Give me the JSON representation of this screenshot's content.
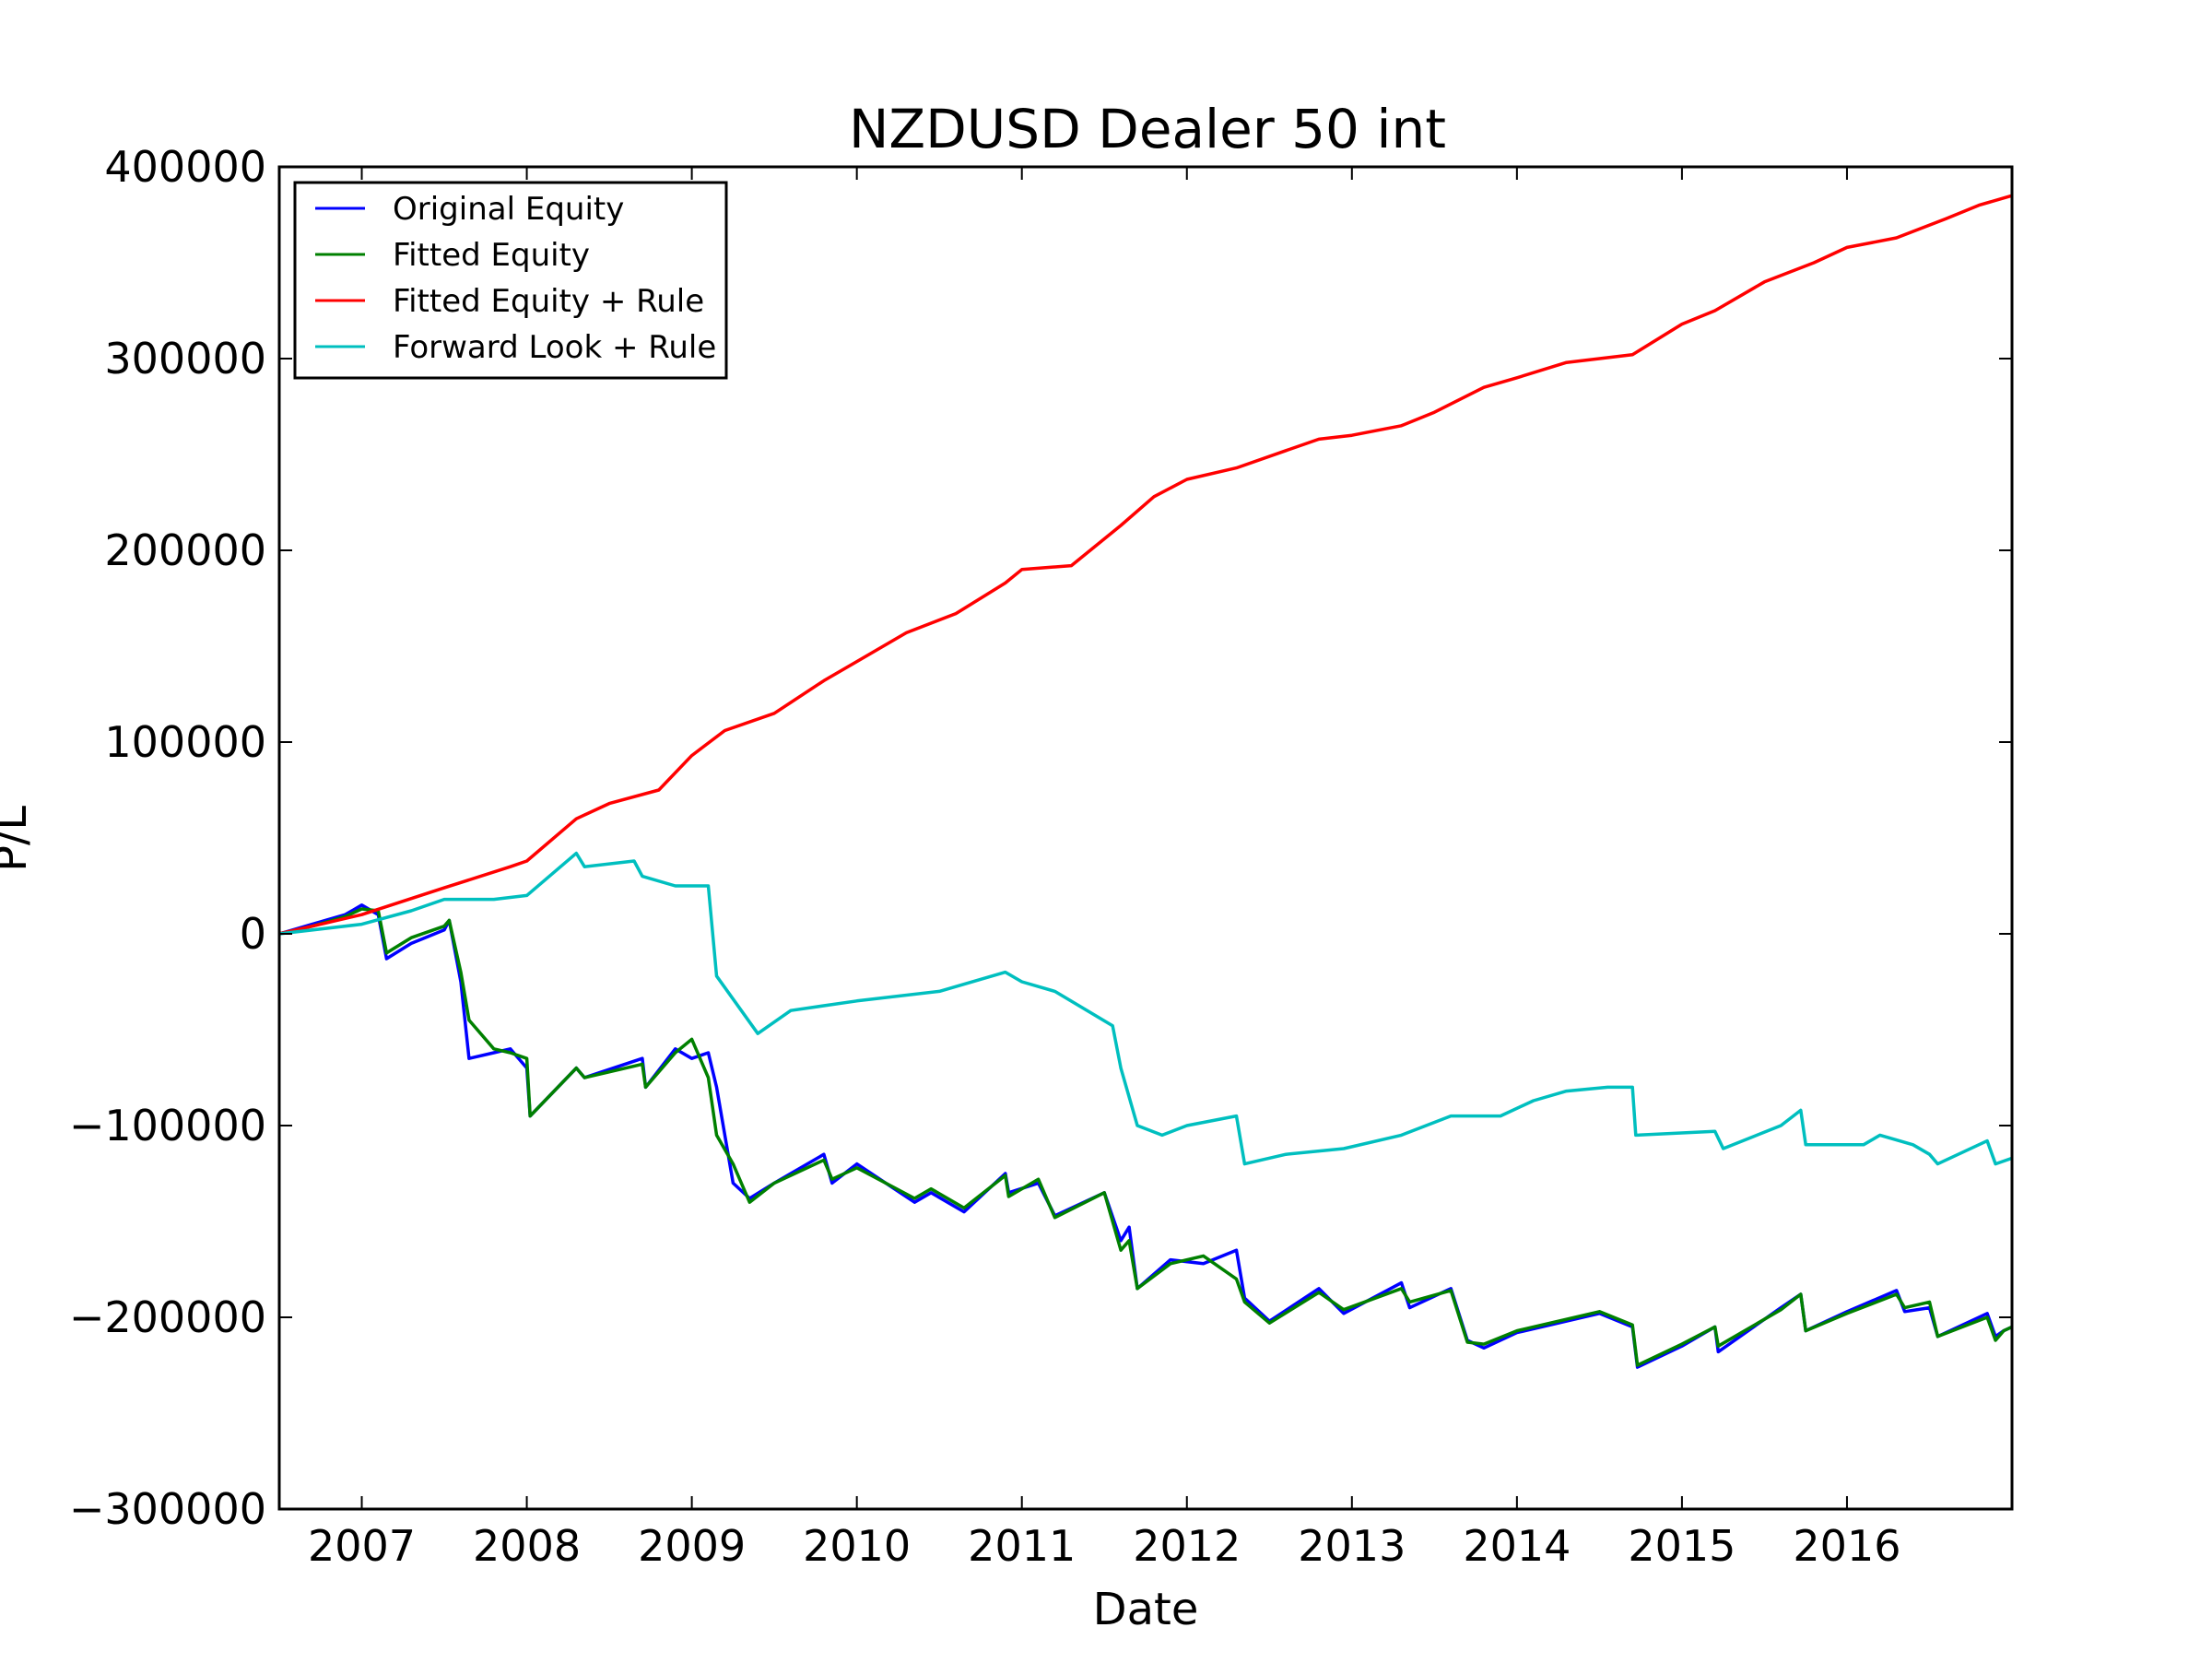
{
  "chart_data": {
    "type": "line",
    "title": "NZDUSD Dealer 50 int",
    "xlabel": "Date",
    "ylabel": "P/L",
    "xlim": [
      2006.5,
      2017.0
    ],
    "ylim": [
      -300000,
      400000
    ],
    "grid": false,
    "legend_position": "top-left",
    "x_ticks": [
      2007,
      2008,
      2009,
      2010,
      2011,
      2012,
      2013,
      2014,
      2015,
      2016
    ],
    "x_tick_labels": [
      "2007",
      "2008",
      "2009",
      "2010",
      "2011",
      "2012",
      "2013",
      "2014",
      "2015",
      "2016"
    ],
    "y_ticks": [
      -300000,
      -200000,
      -100000,
      0,
      100000,
      200000,
      300000,
      400000
    ],
    "y_tick_labels": [
      "−300000",
      "−200000",
      "−100000",
      "0",
      "100000",
      "200000",
      "300000",
      "400000"
    ],
    "series": [
      {
        "name": "Original Equity",
        "color": "#0000ff",
        "x": [
          2006.5,
          2006.7,
          2006.9,
          2007.0,
          2007.1,
          2007.15,
          2007.3,
          2007.5,
          2007.53,
          2007.6,
          2007.65,
          2007.8,
          2007.9,
          2008.0,
          2008.02,
          2008.3,
          2008.35,
          2008.7,
          2008.72,
          2008.9,
          2009.0,
          2009.1,
          2009.15,
          2009.25,
          2009.35,
          2009.5,
          2009.8,
          2009.85,
          2010.0,
          2010.35,
          2010.45,
          2010.65,
          2010.9,
          2010.92,
          2011.1,
          2011.2,
          2011.5,
          2011.6,
          2011.65,
          2011.7,
          2011.9,
          2012.1,
          2012.3,
          2012.35,
          2012.5,
          2012.8,
          2012.95,
          2013.3,
          2013.35,
          2013.6,
          2013.7,
          2013.8,
          2014.0,
          2014.5,
          2014.7,
          2014.73,
          2015.0,
          2015.2,
          2015.22,
          2015.6,
          2015.72,
          2015.75,
          2016.0,
          2016.3,
          2016.35,
          2016.5,
          2016.55,
          2016.85,
          2016.9,
          2016.95,
          2017.0
        ],
        "y": [
          0,
          5000,
          10000,
          15000,
          10000,
          -13000,
          -5000,
          2000,
          7000,
          -25000,
          -65000,
          -62000,
          -60000,
          -70000,
          -95000,
          -70000,
          -75000,
          -65000,
          -80000,
          -60000,
          -65000,
          -62000,
          -80000,
          -130000,
          -138000,
          -130000,
          -115000,
          -130000,
          -120000,
          -140000,
          -135000,
          -145000,
          -125000,
          -135000,
          -130000,
          -147000,
          -135000,
          -160000,
          -153000,
          -185000,
          -170000,
          -172000,
          -165000,
          -190000,
          -202000,
          -185000,
          -198000,
          -182000,
          -195000,
          -185000,
          -212000,
          -216000,
          -208000,
          -198000,
          -205000,
          -226000,
          -215000,
          -205000,
          -218000,
          -195000,
          -188000,
          -207000,
          -197000,
          -186000,
          -197000,
          -195000,
          -210000,
          -198000,
          -210000,
          -207000,
          -205000
        ]
      },
      {
        "name": "Fitted Equity",
        "color": "#008000",
        "x": [
          2006.5,
          2006.7,
          2006.9,
          2007.0,
          2007.1,
          2007.15,
          2007.3,
          2007.5,
          2007.53,
          2007.6,
          2007.65,
          2007.8,
          2007.9,
          2008.0,
          2008.02,
          2008.3,
          2008.35,
          2008.7,
          2008.72,
          2008.9,
          2009.0,
          2009.1,
          2009.15,
          2009.25,
          2009.35,
          2009.5,
          2009.8,
          2009.85,
          2010.0,
          2010.35,
          2010.45,
          2010.65,
          2010.9,
          2010.92,
          2011.1,
          2011.2,
          2011.5,
          2011.6,
          2011.65,
          2011.7,
          2011.9,
          2012.1,
          2012.3,
          2012.35,
          2012.5,
          2012.8,
          2012.95,
          2013.3,
          2013.35,
          2013.6,
          2013.7,
          2013.8,
          2014.0,
          2014.5,
          2014.7,
          2014.73,
          2015.0,
          2015.2,
          2015.22,
          2015.6,
          2015.72,
          2015.75,
          2016.0,
          2016.3,
          2016.35,
          2016.5,
          2016.55,
          2016.85,
          2016.9,
          2016.95,
          2017.0
        ],
        "y": [
          0,
          4000,
          9000,
          13000,
          12000,
          -10000,
          -2000,
          4000,
          7000,
          -20000,
          -45000,
          -60000,
          -62000,
          -65000,
          -95000,
          -70000,
          -75000,
          -68000,
          -80000,
          -62000,
          -55000,
          -75000,
          -105000,
          -120000,
          -140000,
          -130000,
          -118000,
          -128000,
          -122000,
          -138000,
          -133000,
          -143000,
          -126000,
          -137000,
          -128000,
          -148000,
          -135000,
          -165000,
          -160000,
          -185000,
          -172000,
          -168000,
          -180000,
          -192000,
          -203000,
          -187000,
          -196000,
          -185000,
          -192000,
          -186000,
          -213000,
          -214000,
          -207000,
          -197000,
          -204000,
          -225000,
          -214000,
          -205000,
          -215000,
          -196000,
          -188000,
          -207000,
          -198000,
          -188000,
          -195000,
          -192000,
          -210000,
          -200000,
          -212000,
          -207000,
          -205000
        ]
      },
      {
        "name": "Fitted Equity + Rule",
        "color": "#ff0000",
        "x": [
          2006.5,
          2007.0,
          2007.5,
          2007.9,
          2008.0,
          2008.3,
          2008.5,
          2008.8,
          2009.0,
          2009.2,
          2009.5,
          2009.8,
          2010.0,
          2010.3,
          2010.6,
          2010.9,
          2011.0,
          2011.3,
          2011.6,
          2011.8,
          2012.0,
          2012.3,
          2012.6,
          2012.8,
          2013.0,
          2013.3,
          2013.5,
          2013.8,
          2014.0,
          2014.3,
          2014.5,
          2014.7,
          2015.0,
          2015.2,
          2015.5,
          2015.8,
          2016.0,
          2016.3,
          2016.6,
          2016.8,
          2017.0
        ],
        "y": [
          0,
          10000,
          24000,
          35000,
          38000,
          60000,
          68000,
          75000,
          93000,
          106000,
          115000,
          132000,
          142000,
          157000,
          167000,
          183000,
          190000,
          192000,
          213000,
          228000,
          237000,
          243000,
          252000,
          258000,
          260000,
          265000,
          272000,
          285000,
          290000,
          298000,
          300000,
          302000,
          318000,
          325000,
          340000,
          350000,
          358000,
          363000,
          373000,
          380000,
          385000
        ]
      },
      {
        "name": "Forward Look + Rule",
        "color": "#00bfbf",
        "x": [
          2006.5,
          2007.0,
          2007.3,
          2007.5,
          2007.8,
          2008.0,
          2008.3,
          2008.35,
          2008.65,
          2008.7,
          2008.9,
          2009.1,
          2009.15,
          2009.3,
          2009.4,
          2009.6,
          2010.0,
          2010.5,
          2010.9,
          2011.0,
          2011.2,
          2011.55,
          2011.6,
          2011.7,
          2011.85,
          2012.0,
          2012.3,
          2012.35,
          2012.6,
          2012.95,
          2013.3,
          2013.6,
          2013.9,
          2014.1,
          2014.3,
          2014.55,
          2014.7,
          2014.72,
          2015.2,
          2015.25,
          2015.6,
          2015.72,
          2015.75,
          2016.1,
          2016.2,
          2016.4,
          2016.5,
          2016.55,
          2016.85,
          2016.9,
          2017.0
        ],
        "y": [
          0,
          5000,
          12000,
          18000,
          18000,
          20000,
          42000,
          35000,
          38000,
          30000,
          25000,
          25000,
          -22000,
          -40000,
          -52000,
          -40000,
          -35000,
          -30000,
          -20000,
          -25000,
          -30000,
          -48000,
          -70000,
          -100000,
          -105000,
          -100000,
          -95000,
          -120000,
          -115000,
          -112000,
          -105000,
          -95000,
          -95000,
          -87000,
          -82000,
          -80000,
          -80000,
          -105000,
          -103000,
          -112000,
          -100000,
          -92000,
          -110000,
          -110000,
          -105000,
          -110000,
          -115000,
          -120000,
          -108000,
          -120000,
          -117000
        ]
      }
    ]
  }
}
